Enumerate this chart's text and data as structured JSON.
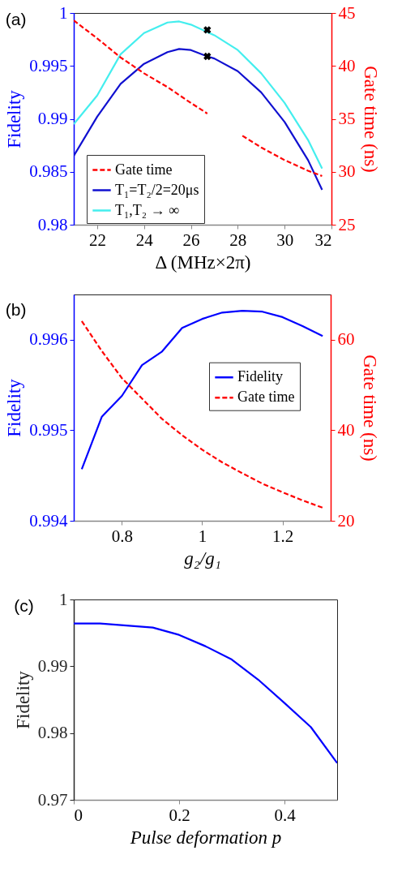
{
  "chart_data": [
    {
      "type": "line",
      "title": "(a)",
      "xlabel": "Δ (MHz×2π)",
      "ylabel": "Fidelity",
      "y2label": "Gate time (ns)",
      "xlim": [
        21,
        32
      ],
      "xticks": [
        22,
        24,
        26,
        28,
        30,
        32
      ],
      "ylim": [
        0.98,
        1
      ],
      "yticks": [
        0.98,
        0.985,
        0.99,
        0.995,
        1
      ],
      "y2lim": [
        25,
        45
      ],
      "y2ticks": [
        25,
        30,
        35,
        40,
        45
      ],
      "legend": "bottom left",
      "series": [
        {
          "name": "Gate time",
          "color": "#ff0000",
          "axis": "y2",
          "line_style": "dashed",
          "x": [
            21,
            22,
            23,
            24,
            25,
            26,
            26.7,
            27.4,
            28.2,
            29,
            30,
            31,
            31.6
          ],
          "values": [
            44.3,
            42.6,
            40.8,
            39.3,
            38.0,
            36.5,
            35.5,
            null,
            33.4,
            32.3,
            31.1,
            30.1,
            29.6
          ]
        },
        {
          "name": "T₁=T₂/2=20μs",
          "color": "#1010d0",
          "x": [
            21,
            22,
            23,
            24,
            25,
            25.5,
            26,
            26.7,
            27,
            28,
            29,
            30,
            31,
            31.6
          ],
          "values": [
            0.9865,
            0.9902,
            0.9933,
            0.9952,
            0.9963,
            0.9966,
            0.9965,
            0.9959,
            0.9957,
            0.9945,
            0.9925,
            0.9897,
            0.9861,
            0.9833
          ]
        },
        {
          "name": "T₁,T₂ → ∞",
          "color": "#44eeee",
          "x": [
            21,
            22,
            23,
            24,
            25,
            25.5,
            26,
            27,
            28,
            29,
            30,
            31,
            31.6
          ],
          "values": [
            0.9895,
            0.9922,
            0.9961,
            0.9981,
            0.9991,
            0.9992,
            0.9989,
            0.9979,
            0.9965,
            0.9943,
            0.9915,
            0.988,
            0.9853
          ]
        },
        {
          "type": "scatter",
          "marker": "cross",
          "color": "#000000",
          "x": [
            26.7,
            26.7
          ],
          "values": [
            0.9984,
            0.9959
          ]
        }
      ]
    },
    {
      "type": "line",
      "title": "(b)",
      "xlabel": "g₂/g₁",
      "ylabel": "Fidelity",
      "y2label": "Gate time (ns)",
      "xlim": [
        0.68,
        1.32
      ],
      "xticks": [
        0.8,
        1,
        1.2
      ],
      "ylim": [
        0.994,
        0.9965
      ],
      "yticks": [
        0.994,
        0.995,
        0.996
      ],
      "y2lim": [
        20,
        70
      ],
      "y2ticks": [
        20,
        40,
        60
      ],
      "legend": "top right",
      "x": [
        0.7,
        0.75,
        0.8,
        0.85,
        0.9,
        0.95,
        1,
        1.05,
        1.1,
        1.15,
        1.2,
        1.25,
        1.3
      ],
      "series": [
        {
          "name": "Fidelity",
          "color": "#0000ff",
          "values": [
            0.99457,
            0.99515,
            0.99538,
            0.99572,
            0.99587,
            0.99613,
            0.99623,
            0.9963,
            0.99632,
            0.99631,
            0.99625,
            0.99615,
            0.99604
          ]
        },
        {
          "name": "Gate time",
          "color": "#ff0000",
          "axis": "y2",
          "line_style": "dashed",
          "values": [
            64.1,
            57.5,
            51.5,
            47.0,
            42.5,
            38.9,
            35.7,
            32.9,
            30.5,
            28.2,
            26.3,
            24.5,
            22.9
          ]
        }
      ]
    },
    {
      "type": "line",
      "title": "(c)",
      "xlabel": "Pulse deformation p",
      "ylabel": "Fidelity",
      "xlim": [
        0,
        0.5
      ],
      "xticks": [
        0,
        0.2,
        0.4
      ],
      "ylim": [
        0.97,
        1
      ],
      "yticks": [
        0.97,
        0.98,
        0.99,
        1
      ],
      "x": [
        0,
        0.05,
        0.1,
        0.15,
        0.2,
        0.25,
        0.3,
        0.35,
        0.4,
        0.45,
        0.5
      ],
      "series": [
        {
          "color": "#0000ff",
          "values": [
            0.9964,
            0.9964,
            0.9961,
            0.9958,
            0.9947,
            0.993,
            0.991,
            0.988,
            0.9845,
            0.9809,
            0.9755
          ]
        }
      ]
    }
  ]
}
